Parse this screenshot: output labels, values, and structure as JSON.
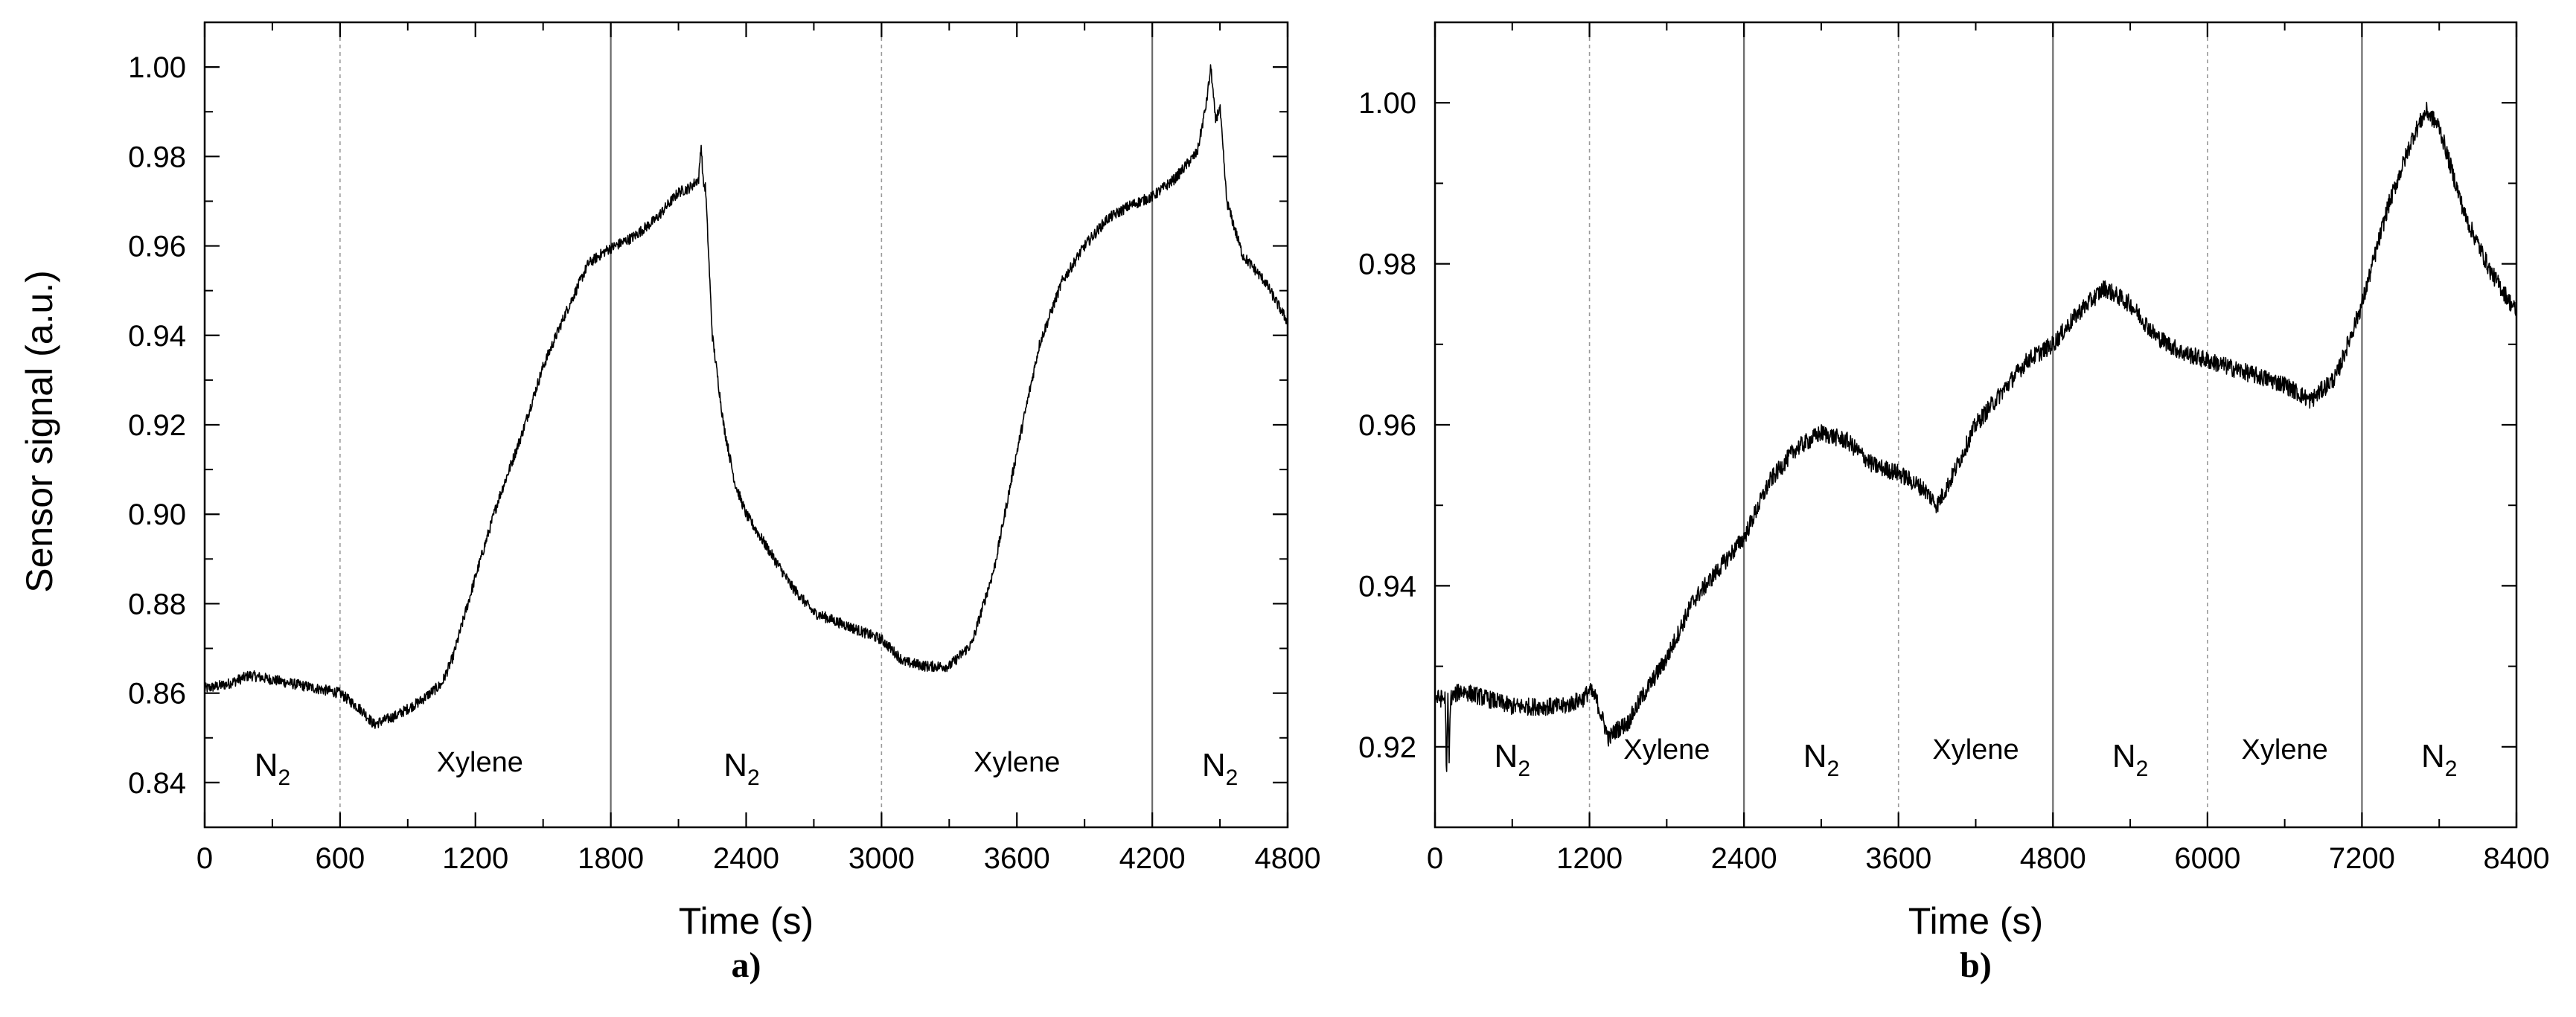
{
  "y_axis_title": "Sensor signal (a.u.)",
  "chart_data": [
    {
      "type": "line",
      "caption": "a)",
      "xlabel": "Time (s)",
      "ylabel": "Sensor signal (a.u.)",
      "xlim": [
        0,
        4800
      ],
      "ylim": [
        0.83,
        1.01
      ],
      "xticks": [
        0,
        600,
        1200,
        1800,
        2400,
        3000,
        3600,
        4200,
        4800
      ],
      "yticks": [
        0.84,
        0.86,
        0.88,
        0.9,
        0.92,
        0.94,
        0.96,
        0.98,
        1.0
      ],
      "ytick_labels": [
        "0.84",
        "0.86",
        "0.88",
        "0.90",
        "0.92",
        "0.94",
        "0.96",
        "0.98",
        "1.00"
      ],
      "grid": false,
      "dashed_vlines": [
        600,
        3000
      ],
      "solid_vlines": [
        1800,
        4200
      ],
      "regions": [
        {
          "label": "N",
          "sub": "2",
          "x": 300,
          "y": 0.8415
        },
        {
          "label": "Xylene",
          "x": 1220,
          "y": 0.8425
        },
        {
          "label": "N",
          "sub": "2",
          "x": 2380,
          "y": 0.8415
        },
        {
          "label": "Xylene",
          "x": 3600,
          "y": 0.8425
        },
        {
          "label": "N",
          "sub": "2",
          "x": 4500,
          "y": 0.8415
        }
      ],
      "series": [
        {
          "color": "#000000",
          "noise": 0.0012,
          "x": [
            0,
            100,
            200,
            300,
            400,
            500,
            600,
            700,
            750,
            850,
            950,
            1050,
            1100,
            1200,
            1300,
            1400,
            1500,
            1600,
            1700,
            1780,
            1820,
            1900,
            2000,
            2100,
            2150,
            2190,
            2200,
            2210,
            2220,
            2250,
            2300,
            2350,
            2400,
            2500,
            2600,
            2700,
            2800,
            2900,
            3000,
            3100,
            3200,
            3300,
            3400,
            3500,
            3600,
            3700,
            3800,
            3900,
            4000,
            4100,
            4200,
            4300,
            4400,
            4440,
            4460,
            4480,
            4500,
            4530,
            4600,
            4700,
            4800
          ],
          "y": [
            0.861,
            0.862,
            0.864,
            0.863,
            0.862,
            0.861,
            0.86,
            0.856,
            0.853,
            0.855,
            0.858,
            0.862,
            0.868,
            0.886,
            0.903,
            0.917,
            0.933,
            0.945,
            0.956,
            0.959,
            0.96,
            0.962,
            0.966,
            0.972,
            0.973,
            0.975,
            0.983,
            0.974,
            0.973,
            0.94,
            0.92,
            0.907,
            0.9,
            0.892,
            0.884,
            0.878,
            0.876,
            0.874,
            0.872,
            0.867,
            0.866,
            0.866,
            0.871,
            0.888,
            0.914,
            0.938,
            0.952,
            0.96,
            0.966,
            0.969,
            0.971,
            0.975,
            0.981,
            0.992,
            1.0,
            0.988,
            0.991,
            0.97,
            0.958,
            0.952,
            0.943
          ]
        }
      ]
    },
    {
      "type": "line",
      "caption": "b)",
      "xlabel": "Time (s)",
      "ylabel": "",
      "xlim": [
        0,
        8400
      ],
      "ylim": [
        0.91,
        1.01
      ],
      "xticks": [
        0,
        1200,
        2400,
        3600,
        4800,
        6000,
        7200,
        8400
      ],
      "yticks": [
        0.92,
        0.94,
        0.96,
        0.98,
        1.0
      ],
      "ytick_labels": [
        "0.92",
        "0.94",
        "0.96",
        "0.98",
        "1.00"
      ],
      "grid": false,
      "dashed_vlines": [
        1200,
        3600,
        6000
      ],
      "solid_vlines": [
        2400,
        4800,
        7200
      ],
      "regions": [
        {
          "label": "N",
          "sub": "2",
          "x": 600,
          "y": 0.9175
        },
        {
          "label": "Xylene",
          "x": 1800,
          "y": 0.9185
        },
        {
          "label": "N",
          "sub": "2",
          "x": 3000,
          "y": 0.9175
        },
        {
          "label": "Xylene",
          "x": 4200,
          "y": 0.9185
        },
        {
          "label": "N",
          "sub": "2",
          "x": 5400,
          "y": 0.9175
        },
        {
          "label": "Xylene",
          "x": 6600,
          "y": 0.9185
        },
        {
          "label": "N",
          "sub": "2",
          "x": 7800,
          "y": 0.9175
        }
      ],
      "series": [
        {
          "color": "#000000",
          "noise": 0.0011,
          "x": [
            0,
            80,
            90,
            100,
            110,
            120,
            200,
            400,
            600,
            800,
            1000,
            1150,
            1200,
            1250,
            1350,
            1400,
            1500,
            1600,
            1800,
            2000,
            2200,
            2400,
            2600,
            2800,
            3000,
            3200,
            3400,
            3600,
            3800,
            3900,
            4000,
            4200,
            4400,
            4600,
            4800,
            5000,
            5200,
            5400,
            5600,
            5800,
            6000,
            6200,
            6400,
            6600,
            6800,
            7000,
            7200,
            7400,
            7600,
            7700,
            7800,
            8000,
            8200,
            8400
          ],
          "y": [
            0.926,
            0.926,
            0.916,
            0.926,
            0.918,
            0.926,
            0.927,
            0.926,
            0.925,
            0.925,
            0.925,
            0.926,
            0.927,
            0.926,
            0.921,
            0.922,
            0.923,
            0.926,
            0.931,
            0.938,
            0.942,
            0.946,
            0.953,
            0.957,
            0.959,
            0.958,
            0.955,
            0.954,
            0.952,
            0.95,
            0.953,
            0.96,
            0.964,
            0.968,
            0.97,
            0.974,
            0.977,
            0.975,
            0.971,
            0.969,
            0.968,
            0.967,
            0.966,
            0.965,
            0.963,
            0.966,
            0.975,
            0.987,
            0.996,
            0.999,
            0.997,
            0.986,
            0.979,
            0.974
          ]
        }
      ]
    }
  ]
}
